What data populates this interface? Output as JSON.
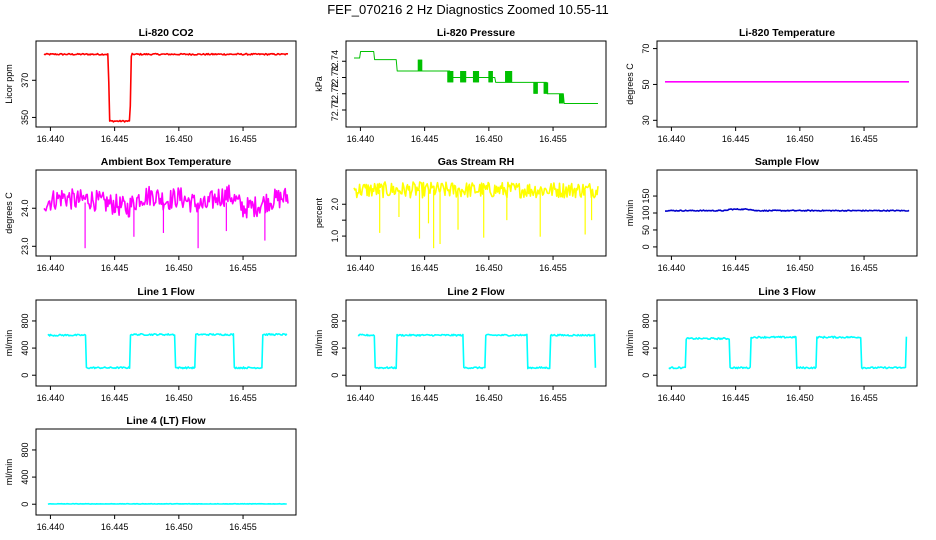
{
  "figure_title": "FEF_070216  2 Hz Diagnostics Zoomed 10.55-11",
  "colors": {
    "co2": "#ff0000",
    "pressure": "#00c000",
    "temperature": "#ff00ff",
    "box": "#ff00ff",
    "rh": "#ffff00",
    "sample": "#0000cc",
    "line": "#00ffff"
  },
  "chart_data": [
    {
      "type": "line",
      "id": "co2",
      "title": "Li-820 CO2",
      "ylabel": "Licor ppm",
      "xlim": [
        16.4395,
        16.4585
      ],
      "ylim": [
        347,
        389
      ],
      "xticks": [
        16.44,
        16.445,
        16.45,
        16.455
      ],
      "xtick_labels": [
        "16.440",
        "16.445",
        "16.450",
        "16.455"
      ],
      "yticks": [
        350,
        370
      ],
      "ytick_labels": [
        "350",
        "370"
      ],
      "color_key": "co2",
      "series": [
        {
          "name": "CO2",
          "x": [
            16.4395,
            16.4445,
            16.4446,
            16.4462,
            16.4463,
            16.4585
          ],
          "y": [
            384,
            384,
            348,
            348,
            384,
            384
          ]
        }
      ],
      "noise": 0.4
    },
    {
      "type": "line",
      "id": "pressure",
      "title": "Li-820 Pressure",
      "ylabel": "kPa",
      "xlim": [
        16.4395,
        16.4585
      ],
      "ylim": [
        72.702,
        72.75
      ],
      "xticks": [
        16.44,
        16.445,
        16.45,
        16.455
      ],
      "xtick_labels": [
        "16.440",
        "16.445",
        "16.450",
        "16.455"
      ],
      "yticks": [
        72.71,
        72.72,
        72.73,
        72.74
      ],
      "ytick_labels": [
        "72.71",
        "72.72",
        "72.73",
        "72.74"
      ],
      "color_key": "pressure",
      "series": [
        {
          "name": "Pressure",
          "step": true,
          "x": [
            16.4395,
            16.44,
            16.4411,
            16.4428,
            16.4445,
            16.446,
            16.447,
            16.448,
            16.449,
            16.4505,
            16.4518,
            16.4528,
            16.4545,
            16.4558,
            16.4585
          ],
          "y": [
            72.742,
            72.746,
            72.741,
            72.734,
            72.734,
            72.734,
            72.73,
            72.73,
            72.73,
            72.727,
            72.727,
            72.727,
            72.72,
            72.714,
            72.714
          ]
        }
      ],
      "toggle_bands": [
        {
          "x0": 16.4445,
          "x1": 16.4448,
          "lo": 72.734,
          "hi": 72.741
        },
        {
          "x0": 16.4468,
          "x1": 16.4472,
          "lo": 72.727,
          "hi": 72.734
        },
        {
          "x0": 16.4478,
          "x1": 16.4482,
          "lo": 72.727,
          "hi": 72.734
        },
        {
          "x0": 16.4488,
          "x1": 16.4492,
          "lo": 72.727,
          "hi": 72.734
        },
        {
          "x0": 16.45,
          "x1": 16.4503,
          "lo": 72.727,
          "hi": 72.734
        },
        {
          "x0": 16.4513,
          "x1": 16.4518,
          "lo": 72.727,
          "hi": 72.734
        },
        {
          "x0": 16.4535,
          "x1": 16.4538,
          "lo": 72.72,
          "hi": 72.727
        },
        {
          "x0": 16.4543,
          "x1": 16.4546,
          "lo": 72.72,
          "hi": 72.727
        },
        {
          "x0": 16.4555,
          "x1": 16.4558,
          "lo": 72.714,
          "hi": 72.72
        }
      ]
    },
    {
      "type": "line",
      "id": "li820temp",
      "title": "Li-820 Temperature",
      "ylabel": "degrees C",
      "xlim": [
        16.4395,
        16.4585
      ],
      "ylim": [
        28.5,
        72
      ],
      "xticks": [
        16.44,
        16.445,
        16.45,
        16.455
      ],
      "xtick_labels": [
        "16.440",
        "16.445",
        "16.450",
        "16.455"
      ],
      "yticks": [
        30,
        50,
        70
      ],
      "ytick_labels": [
        "30",
        "50",
        "70"
      ],
      "color_key": "temperature",
      "series": [
        {
          "name": "Temperature",
          "x": [
            16.4395,
            16.4585
          ],
          "y": [
            51.5,
            51.5
          ]
        }
      ],
      "noise": 0
    },
    {
      "type": "line",
      "id": "boxtemp",
      "title": "Ambient Box Temperature",
      "ylabel": "degrees C",
      "xlim": [
        16.4395,
        16.4585
      ],
      "ylim": [
        22.85,
        24.9
      ],
      "xticks": [
        16.44,
        16.445,
        16.45,
        16.455
      ],
      "xtick_labels": [
        "16.440",
        "16.445",
        "16.450",
        "16.455"
      ],
      "yticks": [
        23.0,
        24.0
      ],
      "ytick_labels": [
        "23.0",
        "24.0"
      ],
      "color_key": "box",
      "series": [
        {
          "name": "Box Temperature",
          "x": [
            16.4395,
            16.441,
            16.442,
            16.443,
            16.444,
            16.445,
            16.446,
            16.447,
            16.448,
            16.449,
            16.45,
            16.451,
            16.452,
            16.453,
            16.454,
            16.455,
            16.456,
            16.457,
            16.4585
          ],
          "y": [
            24.15,
            24.3,
            24.2,
            24.25,
            24.15,
            24.1,
            24.0,
            24.3,
            24.35,
            24.2,
            24.3,
            24.15,
            24.05,
            24.3,
            24.35,
            24.0,
            24.05,
            24.2,
            24.3
          ]
        }
      ],
      "noise": 0.28,
      "spikes": [
        {
          "x": 16.4427,
          "y": 22.95
        },
        {
          "x": 16.4465,
          "y": 23.25
        },
        {
          "x": 16.4488,
          "y": 23.35
        },
        {
          "x": 16.4515,
          "y": 22.95
        },
        {
          "x": 16.4537,
          "y": 23.4
        },
        {
          "x": 16.4567,
          "y": 23.15
        }
      ]
    },
    {
      "type": "line",
      "id": "rh",
      "title": "Gas Stream RH",
      "ylabel": "percent",
      "xlim": [
        16.4395,
        16.4585
      ],
      "ylim": [
        0.5,
        2.95
      ],
      "xticks": [
        16.44,
        16.445,
        16.45,
        16.455
      ],
      "xtick_labels": [
        "16.440",
        "16.445",
        "16.450",
        "16.455"
      ],
      "yticks": [
        1.0,
        1.5,
        2.0
      ],
      "ytick_labels": [
        "1.0",
        "",
        "2.0"
      ],
      "color_key": "rh",
      "series": [
        {
          "name": "RH",
          "x": [
            16.4395,
            16.4585
          ],
          "y": [
            2.45,
            2.45
          ]
        }
      ],
      "noise": 0.25,
      "spikes": [
        {
          "x": 16.4415,
          "y": 1.1
        },
        {
          "x": 16.443,
          "y": 1.6
        },
        {
          "x": 16.4446,
          "y": 0.92
        },
        {
          "x": 16.4453,
          "y": 1.4
        },
        {
          "x": 16.4457,
          "y": 0.62
        },
        {
          "x": 16.4462,
          "y": 0.75
        },
        {
          "x": 16.4476,
          "y": 1.2
        },
        {
          "x": 16.4496,
          "y": 0.95
        },
        {
          "x": 16.4514,
          "y": 1.5
        },
        {
          "x": 16.454,
          "y": 0.98
        },
        {
          "x": 16.4575,
          "y": 1.05
        },
        {
          "x": 16.458,
          "y": 1.5
        }
      ]
    },
    {
      "type": "line",
      "id": "sample",
      "title": "Sample Flow",
      "ylabel": "ml/min",
      "xlim": [
        16.4395,
        16.4585
      ],
      "ylim": [
        -15,
        215
      ],
      "xticks": [
        16.44,
        16.445,
        16.45,
        16.455
      ],
      "xtick_labels": [
        "16.440",
        "16.445",
        "16.450",
        "16.455"
      ],
      "yticks": [
        0,
        50,
        100,
        150
      ],
      "ytick_labels": [
        "0",
        "50",
        "100",
        "150"
      ],
      "color_key": "sample",
      "series": [
        {
          "name": "Sample Flow",
          "x": [
            16.4395,
            16.4443,
            16.4445,
            16.4462,
            16.4465,
            16.4585
          ],
          "y": [
            107,
            107,
            111,
            111,
            107,
            107
          ]
        }
      ],
      "noise": 1.5
    },
    {
      "type": "line",
      "id": "line1",
      "title": "Line 1 Flow",
      "ylabel": "ml/min",
      "xlim": [
        16.4395,
        16.4585
      ],
      "ylim": [
        -100,
        1050
      ],
      "xticks": [
        16.44,
        16.445,
        16.45,
        16.455
      ],
      "xtick_labels": [
        "16.440",
        "16.445",
        "16.450",
        "16.455"
      ],
      "yticks": [
        0,
        400,
        800
      ],
      "ytick_labels": [
        "0",
        "400",
        "800"
      ],
      "color_key": "line",
      "series": [
        {
          "name": "Line 1",
          "step": true,
          "x": [
            16.4398,
            16.4428,
            16.4462,
            16.4497,
            16.4513,
            16.4543,
            16.4565,
            16.4584
          ],
          "y": [
            590,
            110,
            600,
            110,
            600,
            110,
            600,
            600
          ]
        }
      ],
      "noise": 12
    },
    {
      "type": "line",
      "id": "line2",
      "title": "Line 2 Flow",
      "ylabel": "ml/min",
      "xlim": [
        16.4395,
        16.4585
      ],
      "ylim": [
        -100,
        1050
      ],
      "xticks": [
        16.44,
        16.445,
        16.45,
        16.455
      ],
      "xtick_labels": [
        "16.440",
        "16.445",
        "16.450",
        "16.455"
      ],
      "yticks": [
        0,
        400,
        800
      ],
      "ytick_labels": [
        "0",
        "400",
        "800"
      ],
      "color_key": "line",
      "series": [
        {
          "name": "Line 2",
          "step": true,
          "x": [
            16.4398,
            16.4411,
            16.4428,
            16.448,
            16.4497,
            16.453,
            16.4548,
            16.4583
          ],
          "y": [
            590,
            110,
            590,
            110,
            590,
            110,
            590,
            110
          ]
        }
      ],
      "noise": 12
    },
    {
      "type": "line",
      "id": "line3",
      "title": "Line 3 Flow",
      "ylabel": "ml/min",
      "xlim": [
        16.4395,
        16.4585
      ],
      "ylim": [
        -100,
        1050
      ],
      "xticks": [
        16.44,
        16.445,
        16.45,
        16.455
      ],
      "xtick_labels": [
        "16.440",
        "16.445",
        "16.450",
        "16.455"
      ],
      "yticks": [
        0,
        400,
        800
      ],
      "ytick_labels": [
        "0",
        "400",
        "800"
      ],
      "color_key": "line",
      "series": [
        {
          "name": "Line 3",
          "step": true,
          "x": [
            16.4398,
            16.4411,
            16.4445,
            16.4462,
            16.4497,
            16.4513,
            16.4548,
            16.4583
          ],
          "y": [
            110,
            540,
            110,
            560,
            110,
            560,
            110,
            560
          ]
        }
      ],
      "noise": 12
    },
    {
      "type": "line",
      "id": "line4",
      "title": "Line 4 (LT) Flow",
      "ylabel": "ml/min",
      "xlim": [
        16.4395,
        16.4585
      ],
      "ylim": [
        -100,
        1050
      ],
      "xticks": [
        16.44,
        16.445,
        16.45,
        16.455
      ],
      "xtick_labels": [
        "16.440",
        "16.445",
        "16.450",
        "16.455"
      ],
      "yticks": [
        0,
        400,
        800
      ],
      "ytick_labels": [
        "0",
        "400",
        "800"
      ],
      "color_key": "line",
      "series": [
        {
          "name": "Line 4",
          "x": [
            16.4398,
            16.4584
          ],
          "y": [
            5,
            5
          ]
        }
      ],
      "noise": 3
    }
  ]
}
